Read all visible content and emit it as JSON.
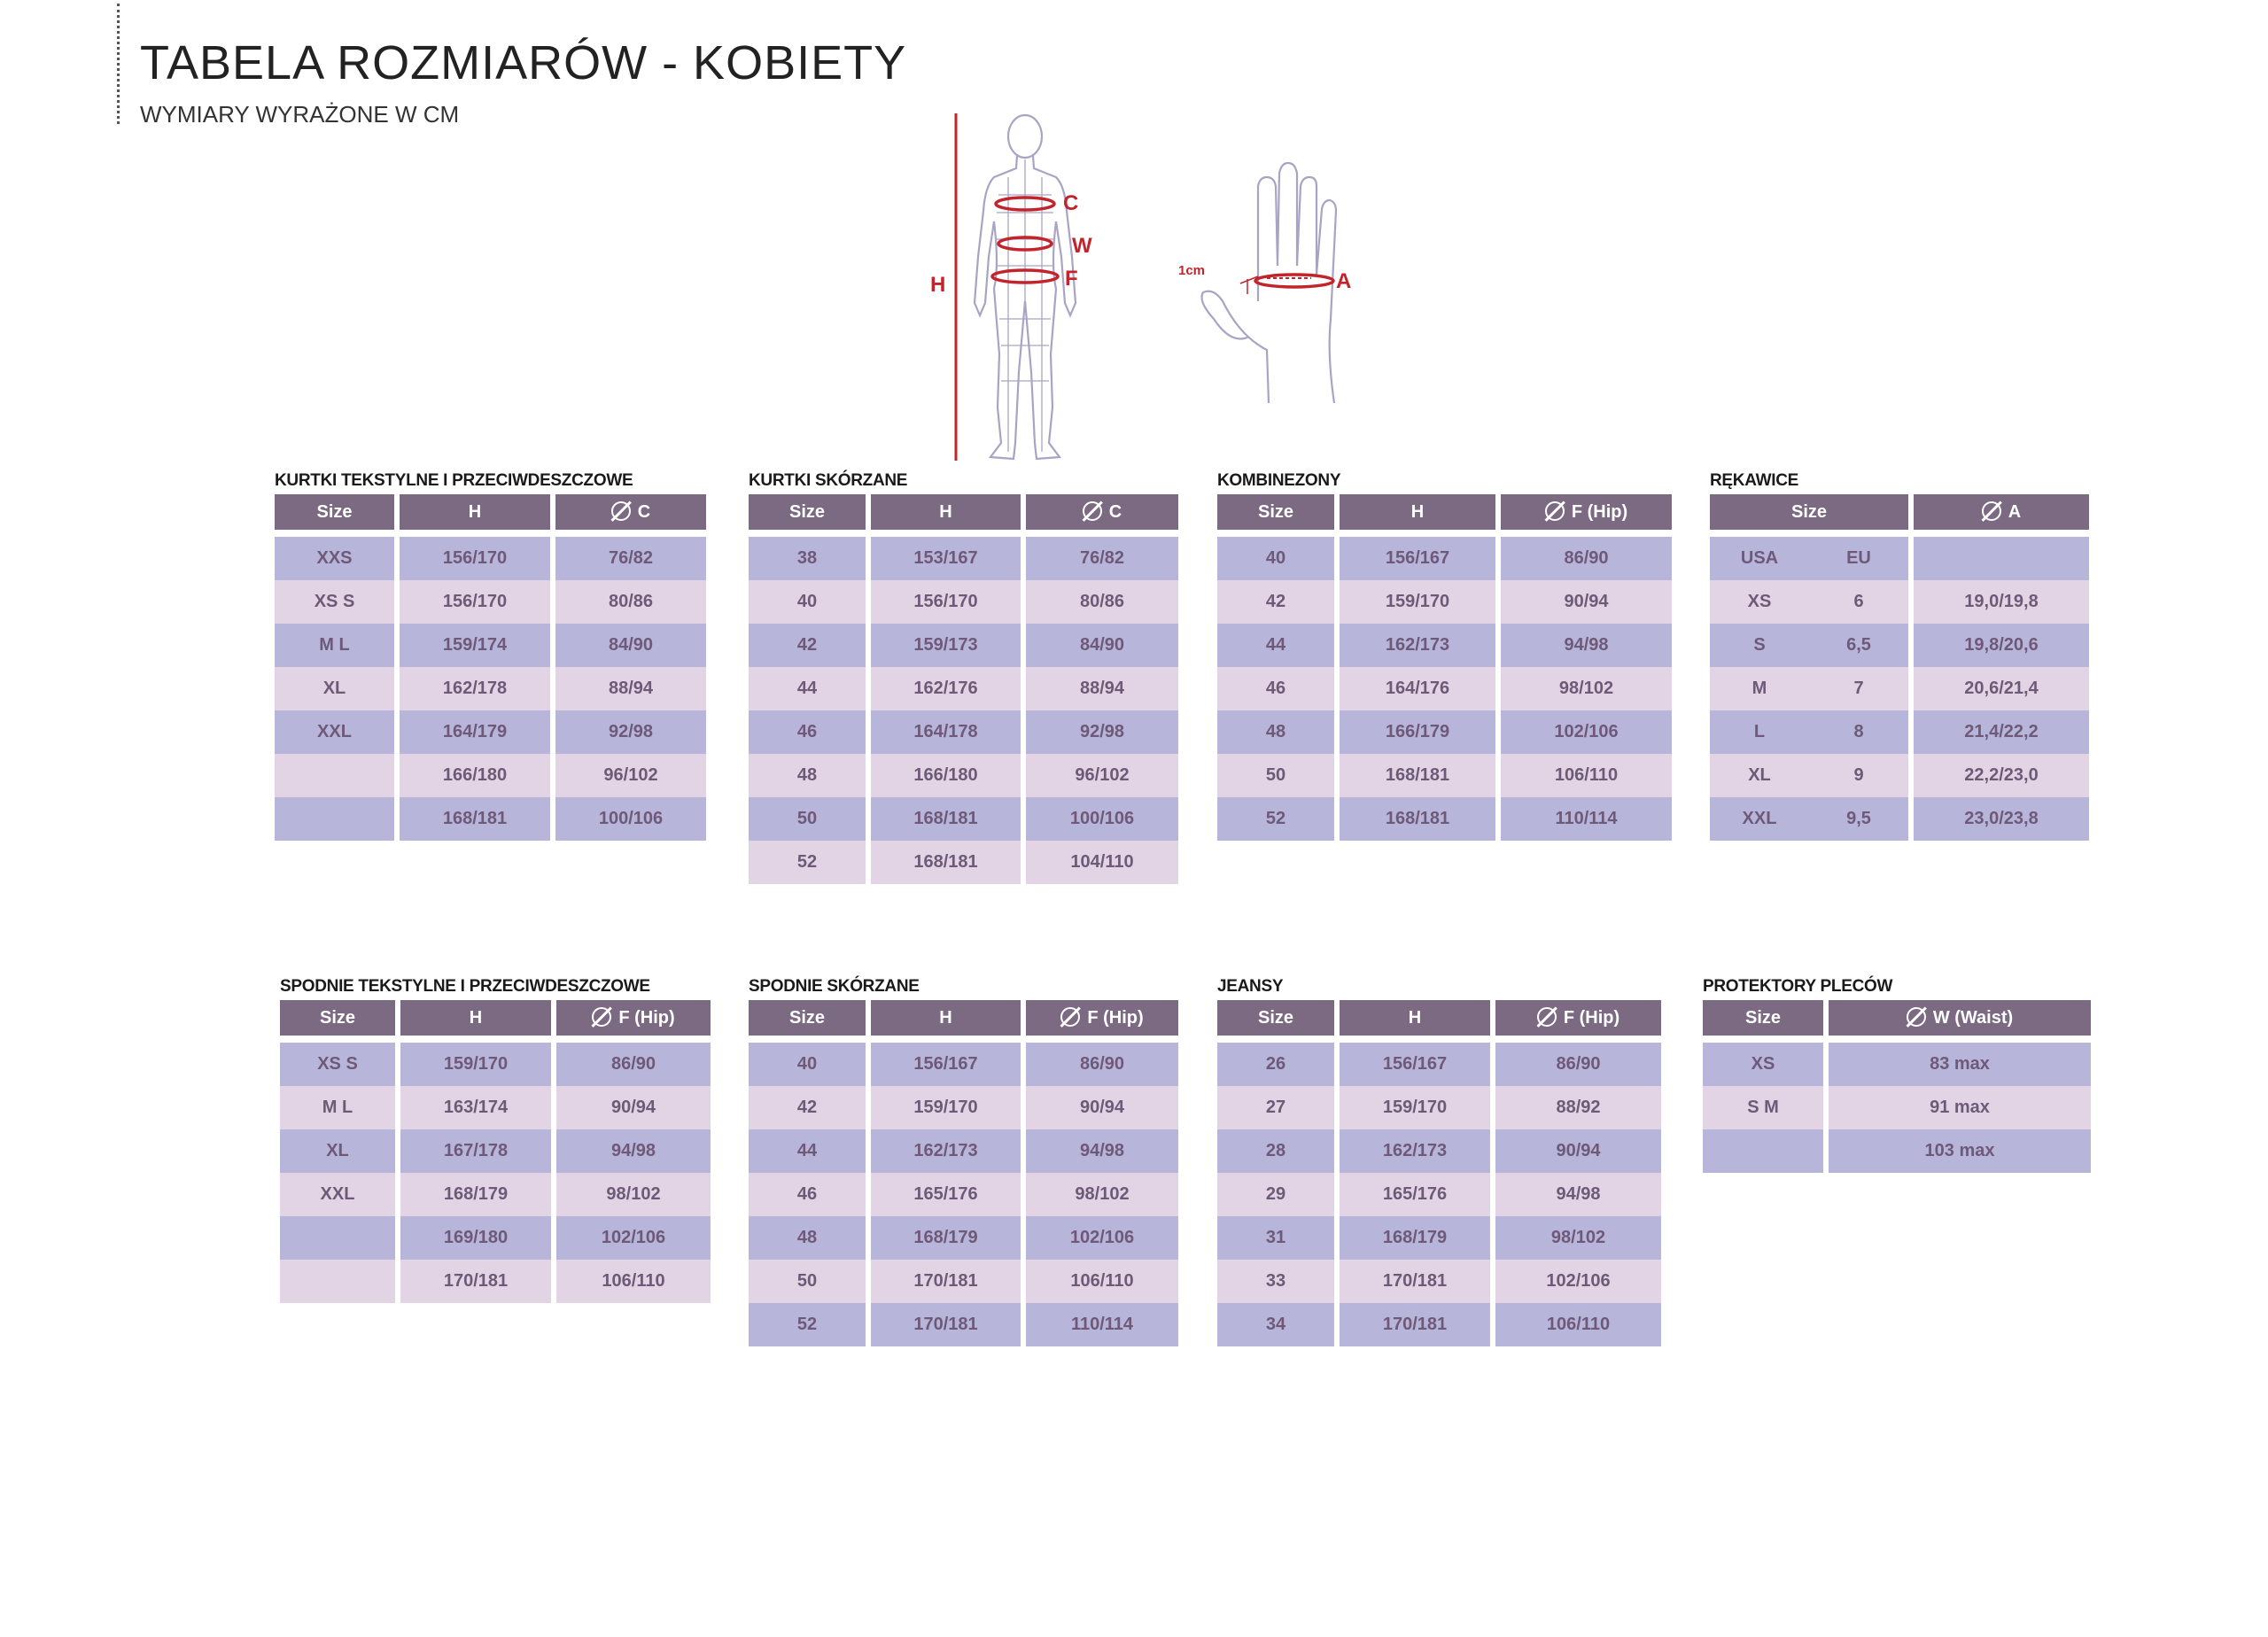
{
  "header": {
    "title": "TABELA ROZMIARÓW - KOBIETY",
    "subtitle": "WYMIARY WYRAŻONE W CM"
  },
  "diagram": {
    "labels": {
      "height": "H",
      "chest": "C",
      "waist": "W",
      "hip": "F",
      "hand": "A",
      "hand_offset": "1cm"
    },
    "colors": {
      "accent_red": "#c3242c",
      "figure_line": "#a9a3c4"
    }
  },
  "colors": {
    "header_bg": "#7b6a82",
    "row_odd": "#b8b5da",
    "row_even": "#e2d4e4",
    "cell_text": "#6e5a78"
  },
  "tables": {
    "kurtki_tekstylne": {
      "title": "KURTKI TEKSTYLNE I PRZECIWDESZCZOWE",
      "headers": [
        "Size",
        "H",
        "C"
      ],
      "rows": [
        [
          "XXS",
          "156/170",
          "76/82"
        ],
        [
          "XS S",
          "156/170",
          "80/86"
        ],
        [
          "M L",
          "159/174",
          "84/90"
        ],
        [
          "XL",
          "162/178",
          "88/94"
        ],
        [
          "XXL",
          "164/179",
          "92/98"
        ],
        [
          "",
          "166/180",
          "96/102"
        ],
        [
          "",
          "168/181",
          "100/106"
        ]
      ]
    },
    "kurtki_skorzane": {
      "title": "KURTKI SKÓRZANE",
      "headers": [
        "Size",
        "H",
        "C"
      ],
      "rows": [
        [
          "38",
          "153/167",
          "76/82"
        ],
        [
          "40",
          "156/170",
          "80/86"
        ],
        [
          "42",
          "159/173",
          "84/90"
        ],
        [
          "44",
          "162/176",
          "88/94"
        ],
        [
          "46",
          "164/178",
          "92/98"
        ],
        [
          "48",
          "166/180",
          "96/102"
        ],
        [
          "50",
          "168/181",
          "100/106"
        ],
        [
          "52",
          "168/181",
          "104/110"
        ]
      ]
    },
    "kombinezony": {
      "title": "KOMBINEZONY",
      "headers": [
        "Size",
        "H",
        "F (Hip)"
      ],
      "rows": [
        [
          "40",
          "156/167",
          "86/90"
        ],
        [
          "42",
          "159/170",
          "90/94"
        ],
        [
          "44",
          "162/173",
          "94/98"
        ],
        [
          "46",
          "164/176",
          "98/102"
        ],
        [
          "48",
          "166/179",
          "102/106"
        ],
        [
          "50",
          "168/181",
          "106/110"
        ],
        [
          "52",
          "168/181",
          "110/114"
        ]
      ]
    },
    "rekawice": {
      "title": "RĘKAWICE",
      "headers": [
        "Size",
        "A"
      ],
      "rows": [
        [
          "USA",
          "EU",
          ""
        ],
        [
          "XS",
          "6",
          "19,0/19,8"
        ],
        [
          "S",
          "6,5",
          "19,8/20,6"
        ],
        [
          "M",
          "7",
          "20,6/21,4"
        ],
        [
          "L",
          "8",
          "21,4/22,2"
        ],
        [
          "XL",
          "9",
          "22,2/23,0"
        ],
        [
          "XXL",
          "9,5",
          "23,0/23,8"
        ]
      ]
    },
    "spodnie_tekstylne": {
      "title": "SPODNIE TEKSTYLNE I PRZECIWDESZCZOWE",
      "headers": [
        "Size",
        "H",
        "F (Hip)"
      ],
      "rows": [
        [
          "XS S",
          "159/170",
          "86/90"
        ],
        [
          "M L",
          "163/174",
          "90/94"
        ],
        [
          "XL",
          "167/178",
          "94/98"
        ],
        [
          "XXL",
          "168/179",
          "98/102"
        ],
        [
          "",
          "169/180",
          "102/106"
        ],
        [
          "",
          "170/181",
          "106/110"
        ]
      ]
    },
    "spodnie_skorzane": {
      "title": "SPODNIE SKÓRZANE",
      "headers": [
        "Size",
        "H",
        "F (Hip)"
      ],
      "rows": [
        [
          "40",
          "156/167",
          "86/90"
        ],
        [
          "42",
          "159/170",
          "90/94"
        ],
        [
          "44",
          "162/173",
          "94/98"
        ],
        [
          "46",
          "165/176",
          "98/102"
        ],
        [
          "48",
          "168/179",
          "102/106"
        ],
        [
          "50",
          "170/181",
          "106/110"
        ],
        [
          "52",
          "170/181",
          "110/114"
        ]
      ]
    },
    "jeansy": {
      "title": "JEANSY",
      "headers": [
        "Size",
        "H",
        "F (Hip)"
      ],
      "rows": [
        [
          "26",
          "156/167",
          "86/90"
        ],
        [
          "27",
          "159/170",
          "88/92"
        ],
        [
          "28",
          "162/173",
          "90/94"
        ],
        [
          "29",
          "165/176",
          "94/98"
        ],
        [
          "31",
          "168/179",
          "98/102"
        ],
        [
          "33",
          "170/181",
          "102/106"
        ],
        [
          "34",
          "170/181",
          "106/110"
        ]
      ]
    },
    "protektory": {
      "title": "PROTEKTORY PLECÓW",
      "headers": [
        "Size",
        "W (Waist)"
      ],
      "rows": [
        [
          "XS",
          "83 max"
        ],
        [
          "S M",
          "91 max"
        ],
        [
          "",
          "103 max"
        ]
      ]
    }
  }
}
